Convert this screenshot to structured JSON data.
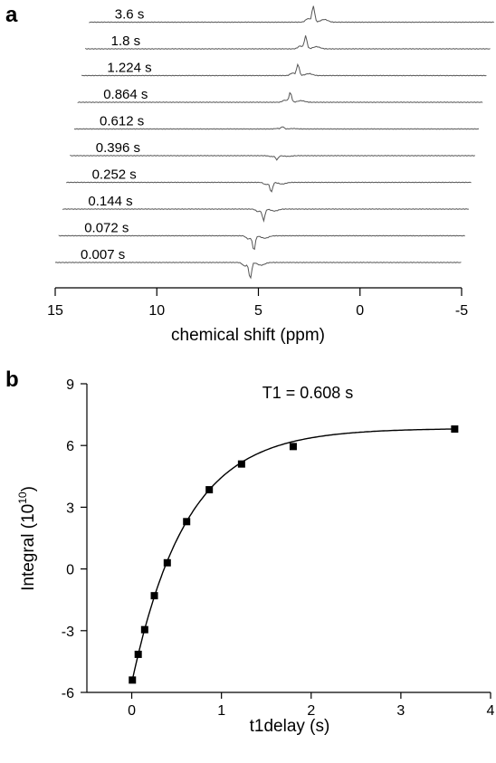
{
  "chart_data": [
    {
      "panel": "a",
      "type": "line",
      "xlabel": "chemical shift (ppm)",
      "xlim": [
        15,
        -5
      ],
      "x_ticks": [
        "15",
        "10",
        "5",
        "0",
        "-5"
      ],
      "series": [
        {
          "name": "0.007 s",
          "delay_s": 0.007,
          "peak_ppm": 5.4,
          "amplitude": -1.0
        },
        {
          "name": "0.072 s",
          "delay_s": 0.072,
          "peak_ppm": 5.4,
          "amplitude": -0.9
        },
        {
          "name": "0.144 s",
          "delay_s": 0.144,
          "peak_ppm": 5.1,
          "amplitude": -0.7
        },
        {
          "name": "0.252 s",
          "delay_s": 0.252,
          "peak_ppm": 4.9,
          "amplitude": -0.6
        },
        {
          "name": "0.396 s",
          "delay_s": 0.396,
          "peak_ppm": 4.8,
          "amplitude": -0.25
        },
        {
          "name": "0.612 s",
          "delay_s": 0.612,
          "peak_ppm": 4.7,
          "amplitude": 0.15
        },
        {
          "name": "0.864 s",
          "delay_s": 0.864,
          "peak_ppm": 4.5,
          "amplitude": 0.6
        },
        {
          "name": "1.224 s",
          "delay_s": 1.224,
          "peak_ppm": 4.3,
          "amplitude": 0.7
        },
        {
          "name": "1.8 s",
          "delay_s": 1.8,
          "peak_ppm": 4.1,
          "amplitude": 0.8
        },
        {
          "name": "3.6 s",
          "delay_s": 3.6,
          "peak_ppm": 3.9,
          "amplitude": 1.0
        }
      ]
    },
    {
      "panel": "b",
      "type": "scatter",
      "annotation": "T1 = 0.608 s",
      "xlabel": "t1delay (s)",
      "ylabel_main": "Integral (10",
      "ylabel_exp": "10",
      "ylabel_close": ")",
      "xlim": [
        -0.5,
        4
      ],
      "ylim": [
        -6,
        9
      ],
      "x_ticks": [
        0,
        1,
        2,
        3,
        4
      ],
      "y_ticks": [
        -6,
        -3,
        0,
        3,
        6,
        9
      ],
      "points": [
        {
          "x": 0.007,
          "y": -5.4
        },
        {
          "x": 0.072,
          "y": -4.15
        },
        {
          "x": 0.144,
          "y": -2.95
        },
        {
          "x": 0.252,
          "y": -1.3
        },
        {
          "x": 0.396,
          "y": 0.3
        },
        {
          "x": 0.612,
          "y": 2.3
        },
        {
          "x": 0.864,
          "y": 3.85
        },
        {
          "x": 1.224,
          "y": 5.1
        },
        {
          "x": 1.8,
          "y": 5.95
        },
        {
          "x": 3.6,
          "y": 6.8
        }
      ],
      "fit": {
        "model": "exponential recovery",
        "T1_s": 0.608
      }
    }
  ],
  "labels": {
    "panel_a": "a",
    "panel_b": "b"
  }
}
